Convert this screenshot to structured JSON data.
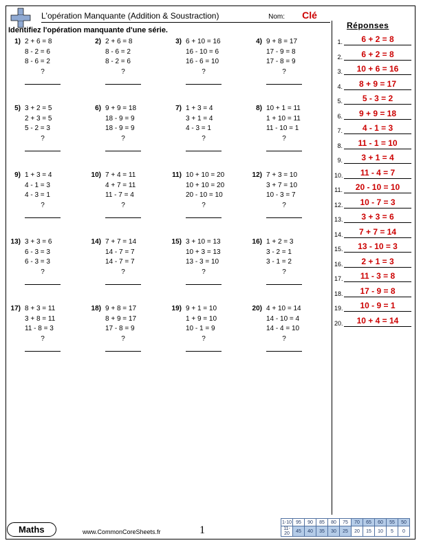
{
  "header": {
    "title": "L'opération Manquante (Addition & Soustraction)",
    "name_label": "Nom:",
    "key_label": "Clé"
  },
  "instruction": "Identifiez l'opération manquante d'une série.",
  "answers_header": "Réponses",
  "problems": [
    {
      "n": "1)",
      "l": [
        "2 + 6 = 8",
        "8 - 2 = 6",
        "8 - 6 = 2"
      ]
    },
    {
      "n": "2)",
      "l": [
        "2 + 6 = 8",
        "8 - 6 = 2",
        "8 - 2 = 6"
      ]
    },
    {
      "n": "3)",
      "l": [
        "6 + 10 = 16",
        "16 - 10 = 6",
        "16 - 6 = 10"
      ]
    },
    {
      "n": "4)",
      "l": [
        "9 + 8 = 17",
        "17 - 9 = 8",
        "17 - 8 = 9"
      ]
    },
    {
      "n": "5)",
      "l": [
        "3 + 2 = 5",
        "2 + 3 = 5",
        "5 - 2 = 3"
      ]
    },
    {
      "n": "6)",
      "l": [
        "9 + 9 = 18",
        "18 - 9 = 9",
        "18 - 9 = 9"
      ]
    },
    {
      "n": "7)",
      "l": [
        "1 + 3 = 4",
        "3 + 1 = 4",
        "4 - 3 = 1"
      ]
    },
    {
      "n": "8)",
      "l": [
        "10 + 1 = 11",
        "1 + 10 = 11",
        "11 - 10 = 1"
      ]
    },
    {
      "n": "9)",
      "l": [
        "1 + 3 = 4",
        "4 - 1 = 3",
        "4 - 3 = 1"
      ]
    },
    {
      "n": "10)",
      "l": [
        "7 + 4 = 11",
        "4 + 7 = 11",
        "11 - 7 = 4"
      ]
    },
    {
      "n": "11)",
      "l": [
        "10 + 10 = 20",
        "10 + 10 = 20",
        "20 - 10 = 10"
      ]
    },
    {
      "n": "12)",
      "l": [
        "7 + 3 = 10",
        "3 + 7 = 10",
        "10 - 3 = 7"
      ]
    },
    {
      "n": "13)",
      "l": [
        "3 + 3 = 6",
        "6 - 3 = 3",
        "6 - 3 = 3"
      ]
    },
    {
      "n": "14)",
      "l": [
        "7 + 7 = 14",
        "14 - 7 = 7",
        "14 - 7 = 7"
      ]
    },
    {
      "n": "15)",
      "l": [
        "3 + 10 = 13",
        "10 + 3 = 13",
        "13 - 3 = 10"
      ]
    },
    {
      "n": "16)",
      "l": [
        "1 + 2 = 3",
        "3 - 2 = 1",
        "3 - 1 = 2"
      ]
    },
    {
      "n": "17)",
      "l": [
        "8 + 3 = 11",
        "3 + 8 = 11",
        "11 - 8 = 3"
      ]
    },
    {
      "n": "18)",
      "l": [
        "9 + 8 = 17",
        "8 + 9 = 17",
        "17 - 8 = 9"
      ]
    },
    {
      "n": "19)",
      "l": [
        "9 + 1 = 10",
        "1 + 9 = 10",
        "10 - 1 = 9"
      ]
    },
    {
      "n": "20)",
      "l": [
        "4 + 10 = 14",
        "14 - 10 = 4",
        "14 - 4 = 10"
      ]
    }
  ],
  "answers": [
    "6 + 2 = 8",
    "6 + 2 = 8",
    "10 + 6 = 16",
    "8 + 9 = 17",
    "5 - 3 = 2",
    "9 + 9 = 18",
    "4 - 1 = 3",
    "11 - 1 = 10",
    "3 + 1 = 4",
    "11 - 4 = 7",
    "20 - 10 = 10",
    "10 - 7 = 3",
    "3 + 3 = 6",
    "7 + 7 = 14",
    "13 - 10 = 3",
    "2 + 1 = 3",
    "11 - 3 = 8",
    "17 - 9 = 8",
    "10 - 9 = 1",
    "10 + 4 = 14"
  ],
  "footer": {
    "subject": "Maths",
    "url": "www.CommonCoreSheets.fr",
    "page": "1",
    "score": {
      "row1_label": "1-10",
      "row1": [
        "95",
        "90",
        "85",
        "80",
        "75",
        "70",
        "65",
        "60",
        "55",
        "50"
      ],
      "row2_label": "11-20",
      "row2": [
        "45",
        "40",
        "35",
        "30",
        "25",
        "20",
        "15",
        "10",
        "5",
        "0"
      ],
      "row1_shaded_from": 5,
      "row2_shaded_to": 4
    }
  },
  "colors": {
    "answer_color": "#cc0000",
    "grid_blue": "#b5cce8",
    "grid_border": "#5070a0"
  }
}
